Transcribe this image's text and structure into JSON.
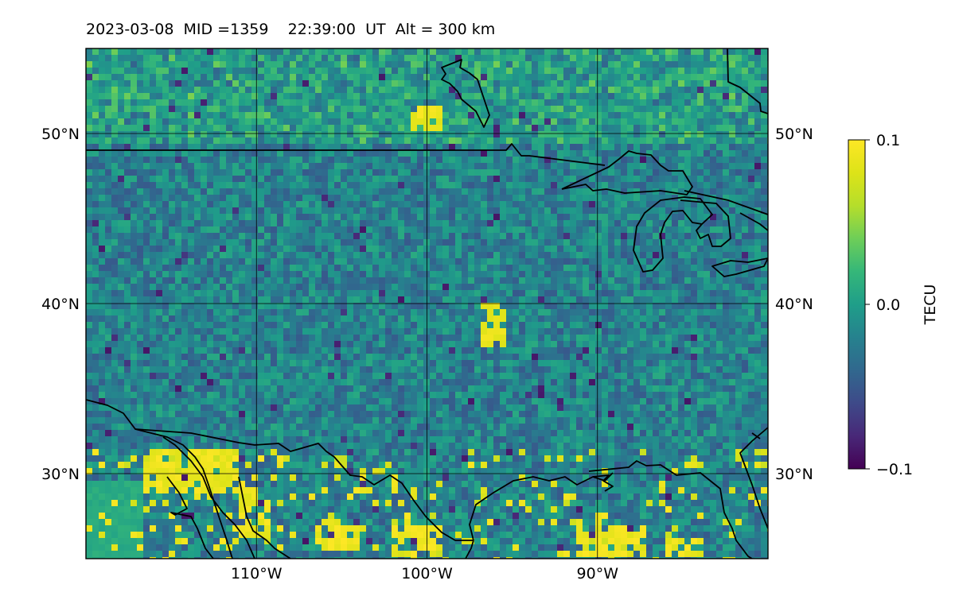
{
  "map": {
    "title": {
      "date": "2023-03-08",
      "mid": "MID =1359",
      "time": "22:39:00",
      "ut": "UT",
      "alt": "Alt = 300 km"
    },
    "extent": {
      "lon": [
        -120,
        -80
      ],
      "lat": [
        25,
        55
      ]
    },
    "latitude_ticks": [
      {
        "value": 50,
        "label": "50°N"
      },
      {
        "value": 40,
        "label": "40°N"
      },
      {
        "value": 30,
        "label": "30°N"
      }
    ],
    "longitude_ticks": [
      {
        "value": -110,
        "label": "110°W"
      },
      {
        "value": -100,
        "label": "100°W"
      },
      {
        "value": -90,
        "label": "90°W"
      }
    ],
    "gridlines": true,
    "colormap": "viridis",
    "colorbar": {
      "label": "TECU",
      "min": -0.1,
      "max": 0.1,
      "ticks": [
        {
          "value": 0.1,
          "label": "0.1"
        },
        {
          "value": 0.0,
          "label": "0.0"
        },
        {
          "value": -0.1,
          "label": "−0.1"
        }
      ]
    }
  }
}
